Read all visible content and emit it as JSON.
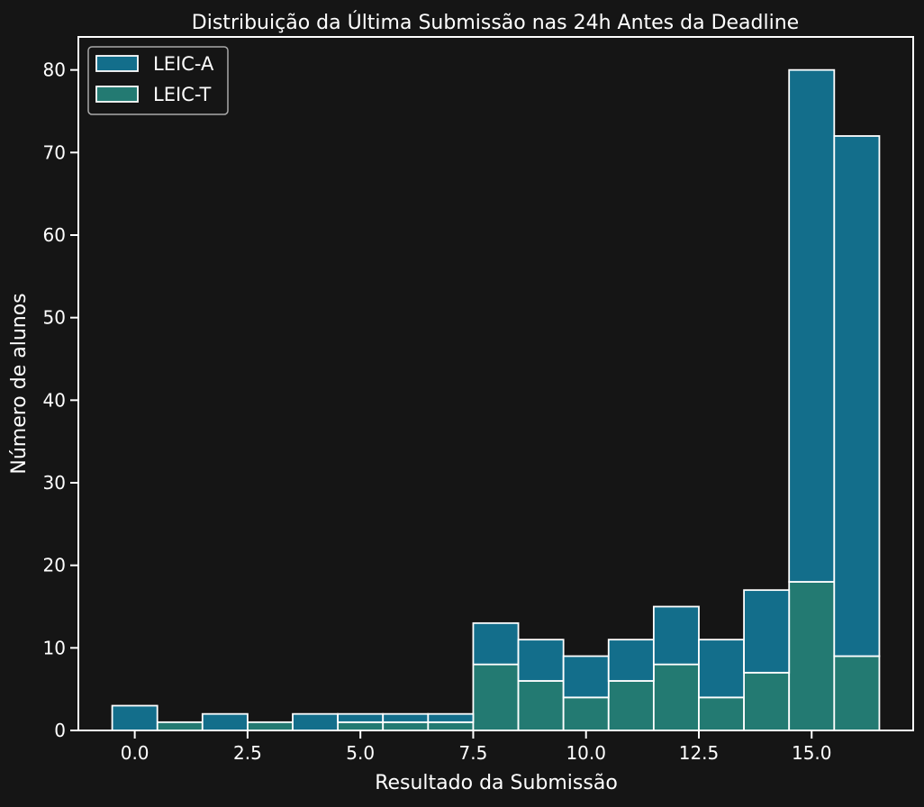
{
  "chart_data": {
    "type": "bar",
    "stacked": true,
    "histogram": true,
    "title": "Distribuição da Última Submissão nas 24h Antes da Deadline",
    "xlabel": "Resultado da Submissão",
    "ylabel": "Número de alunos",
    "xlim": [
      -1.25,
      17.25
    ],
    "ylim": [
      0,
      84
    ],
    "bins": [
      0,
      1,
      2,
      3,
      4,
      5,
      6,
      7,
      8,
      9,
      10,
      11,
      12,
      13,
      14,
      15,
      16
    ],
    "bin_width": 1,
    "x_ticks": [
      0.0,
      2.5,
      5.0,
      7.5,
      10.0,
      12.5,
      15.0
    ],
    "x_tick_labels": [
      "0.0",
      "2.5",
      "5.0",
      "7.5",
      "10.0",
      "12.5",
      "15.0"
    ],
    "y_ticks": [
      0,
      10,
      20,
      30,
      40,
      50,
      60,
      70,
      80
    ],
    "y_tick_labels": [
      "0",
      "10",
      "20",
      "30",
      "40",
      "50",
      "60",
      "70",
      "80"
    ],
    "grid": false,
    "legend_position": "top-left",
    "series": [
      {
        "name": "LEIC-T",
        "color": "#237a72",
        "values": [
          0,
          1,
          0,
          1,
          0,
          1,
          1,
          1,
          8,
          6,
          4,
          6,
          8,
          4,
          7,
          18,
          9
        ]
      },
      {
        "name": "LEIC-A",
        "color": "#136e8b",
        "values": [
          3,
          0,
          2,
          0,
          2,
          1,
          1,
          1,
          5,
          5,
          5,
          5,
          7,
          7,
          10,
          62,
          63
        ]
      }
    ],
    "legend_order": [
      "LEIC-A",
      "LEIC-T"
    ]
  }
}
